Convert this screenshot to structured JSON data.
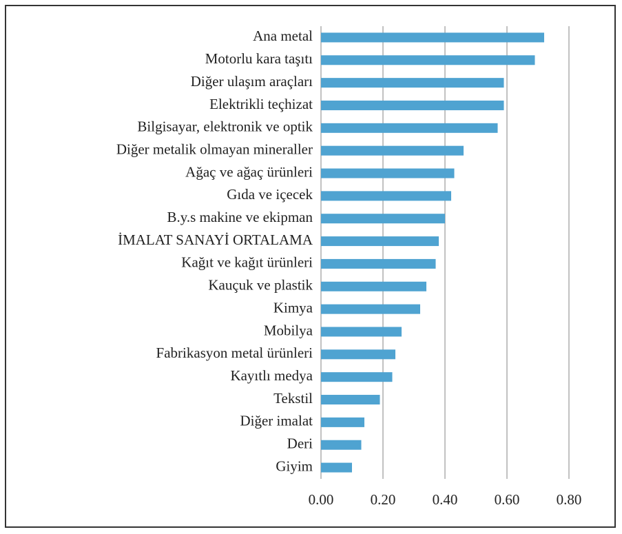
{
  "chart_data": {
    "type": "bar",
    "orientation": "horizontal",
    "categories": [
      "Ana metal",
      "Motorlu kara taşıtı",
      "Diğer ulaşım araçları",
      "Elektrikli teçhizat",
      "Bilgisayar, elektronik ve optik",
      "Diğer metalik olmayan mineraller",
      "Ağaç ve ağaç ürünleri",
      "Gıda ve içecek",
      "B.y.s makine ve ekipman",
      "İMALAT SANAYİ ORTALAMA",
      "Kağıt ve kağıt ürünleri",
      "Kauçuk ve plastik",
      "Kimya",
      "Mobilya",
      "Fabrikasyon metal ürünleri",
      "Kayıtlı medya",
      "Tekstil",
      "Diğer imalat",
      "Deri",
      "Giyim"
    ],
    "values": [
      0.72,
      0.69,
      0.59,
      0.59,
      0.57,
      0.46,
      0.43,
      0.42,
      0.4,
      0.38,
      0.37,
      0.34,
      0.32,
      0.26,
      0.24,
      0.23,
      0.19,
      0.14,
      0.13,
      0.1
    ],
    "color": "#4fa3d1",
    "xlim": [
      0,
      0.8
    ],
    "xticks": [
      {
        "value": 0,
        "label": "0.00"
      },
      {
        "value": 0.2,
        "label": "0.20"
      },
      {
        "value": 0.4,
        "label": "0.40"
      },
      {
        "value": 0.6,
        "label": "0.60"
      },
      {
        "value": 0.8,
        "label": "0.80"
      }
    ],
    "grid": true
  }
}
